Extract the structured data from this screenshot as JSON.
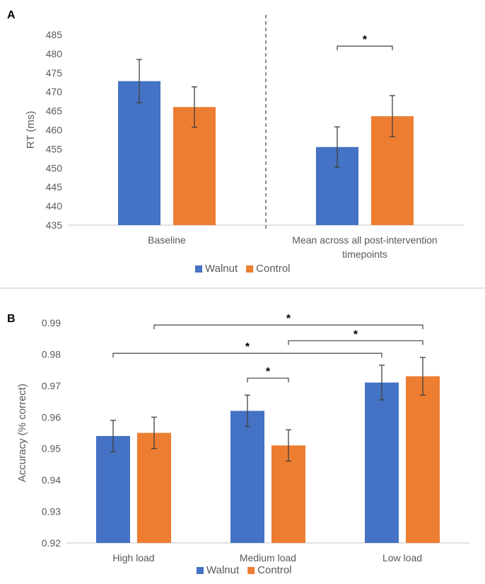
{
  "colors": {
    "walnut": "#4472c4",
    "control": "#ed7d31",
    "axis": "#d9d9d9",
    "text": "#595959"
  },
  "chart_data": [
    {
      "panel_label": "A",
      "type": "bar",
      "ylabel": "RT (ms)",
      "ylim": [
        435,
        485
      ],
      "yticks": [
        435,
        440,
        445,
        450,
        455,
        460,
        465,
        470,
        475,
        480,
        485
      ],
      "grid": false,
      "legend": "bottom",
      "categories": [
        [
          "Baseline"
        ],
        [
          "Mean across all post-intervention",
          "timepoints"
        ]
      ],
      "series": [
        {
          "name": "Walnut",
          "values": [
            472.8,
            455.5
          ],
          "err": [
            5.7,
            5.3
          ]
        },
        {
          "name": "Control",
          "values": [
            466.0,
            463.6
          ],
          "err": [
            5.3,
            5.4
          ]
        }
      ],
      "divider_after_category": 0,
      "annotations": [
        {
          "text": "*",
          "from": {
            "category": 1,
            "series": 0
          },
          "to": {
            "category": 1,
            "series": 1
          },
          "y": 482
        }
      ]
    },
    {
      "panel_label": "B",
      "type": "bar",
      "ylabel": "Accuracy (% correct)",
      "ylim": [
        0.92,
        0.99
      ],
      "yticks": [
        "0.92",
        "0.93",
        "0.94",
        "0.95",
        "0.96",
        "0.97",
        "0.98",
        "0.99"
      ],
      "grid": false,
      "legend": "bottom",
      "categories": [
        [
          "High load"
        ],
        [
          "Medium load"
        ],
        [
          "Low load"
        ]
      ],
      "series": [
        {
          "name": "Walnut",
          "values": [
            0.954,
            0.962,
            0.971
          ],
          "err": [
            0.005,
            0.005,
            0.0055
          ]
        },
        {
          "name": "Control",
          "values": [
            0.955,
            0.951,
            0.973
          ],
          "err": [
            0.005,
            0.005,
            0.006
          ]
        }
      ],
      "annotations": [
        {
          "text": "*",
          "from": {
            "category": 0,
            "series": 1
          },
          "to": {
            "category": 2,
            "series": 1
          },
          "y": 0.9893
        },
        {
          "text": "*",
          "from": {
            "category": 1,
            "series": 1
          },
          "to": {
            "category": 2,
            "series": 1
          },
          "y": 0.9843
        },
        {
          "text": "*",
          "from": {
            "category": 0,
            "series": 0
          },
          "to": {
            "category": 2,
            "series": 0
          },
          "y": 0.9803
        },
        {
          "text": "*",
          "from": {
            "category": 1,
            "series": 0
          },
          "to": {
            "category": 1,
            "series": 1
          },
          "y": 0.9724
        }
      ]
    }
  ]
}
